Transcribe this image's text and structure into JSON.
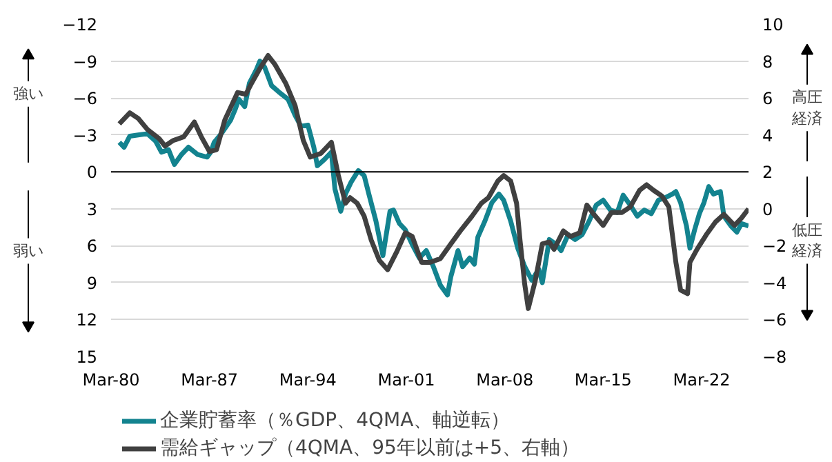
{
  "chart_data": {
    "type": "line",
    "xlim": [
      "1980-03",
      "2025-07"
    ],
    "xticks": [
      {
        "value": "1980-03",
        "label": "Mar-80"
      },
      {
        "value": "1987-03",
        "label": "Mar-87"
      },
      {
        "value": "1994-03",
        "label": "Mar-94"
      },
      {
        "value": "2001-03",
        "label": "Mar-01"
      },
      {
        "value": "2008-03",
        "label": "Mar-08"
      },
      {
        "value": "2015-03",
        "label": "Mar-15"
      },
      {
        "value": "2022-03",
        "label": "Mar-22"
      }
    ],
    "ylim": [
      15,
      -12
    ],
    "yticks": [
      -12,
      -9,
      -6,
      -3,
      0,
      3,
      6,
      9,
      12,
      15
    ],
    "y2lim": [
      -8,
      10
    ],
    "y2ticks": [
      -8,
      -6,
      -4,
      -2,
      0,
      2,
      4,
      6,
      8,
      10
    ],
    "grid": "y",
    "legend": "bottom",
    "ref_lines": [
      {
        "axis": "y",
        "value": 0,
        "color": "#000000"
      }
    ],
    "annotations": [
      "強い",
      "弱い",
      "高圧経済",
      "低圧経済"
    ],
    "series": [
      {
        "name": "企業貯蓄率（％GDP、4QMA、軸逆転）",
        "color": "#13838f",
        "x": [
          "1980-10",
          "1981-02",
          "1981-07",
          "1982-02",
          "1982-10",
          "1983-05",
          "1983-10",
          "1984-04",
          "1984-09",
          "1985-03",
          "1985-09",
          "1986-05",
          "1987-01",
          "1987-04",
          "1987-07",
          "1988-01",
          "1988-09",
          "1989-01",
          "1989-04",
          "1989-09",
          "1990-01",
          "1990-07",
          "1990-10",
          "1991-02",
          "1991-08",
          "1992-02",
          "1992-10",
          "1993-04",
          "1993-09",
          "1994-03",
          "1994-08",
          "1994-11",
          "1995-05",
          "1995-11",
          "1996-02",
          "1996-07",
          "1996-11",
          "1997-04",
          "1997-10",
          "1998-03",
          "1998-07",
          "1999-01",
          "1999-07",
          "2000-01",
          "2000-04",
          "2000-09",
          "2001-02",
          "2001-08",
          "2002-02",
          "2002-08",
          "2003-02",
          "2003-08",
          "2004-02",
          "2004-05",
          "2004-11",
          "2005-03",
          "2005-09",
          "2006-01",
          "2006-04",
          "2006-10",
          "2007-04",
          "2007-10",
          "2008-02",
          "2008-08",
          "2009-02",
          "2009-08",
          "2010-02",
          "2010-08",
          "2010-11",
          "2011-05",
          "2011-11",
          "2012-03",
          "2012-09",
          "2013-03",
          "2013-09",
          "2014-03",
          "2014-09",
          "2015-03",
          "2015-09",
          "2016-03",
          "2016-08",
          "2017-02",
          "2017-08",
          "2018-02",
          "2018-08",
          "2019-02",
          "2019-08",
          "2020-02",
          "2020-05",
          "2020-09",
          "2021-02",
          "2021-05",
          "2021-09",
          "2022-01",
          "2022-05",
          "2022-09",
          "2023-01",
          "2023-07",
          "2023-10",
          "2024-04",
          "2024-09",
          "2025-01",
          "2025-07"
        ],
        "values": [
          -2.4,
          -2.0,
          -2.9,
          -3.0,
          -3.1,
          -2.5,
          -1.6,
          -1.8,
          -0.6,
          -1.4,
          -2.0,
          -1.4,
          -1.2,
          -1.6,
          -2.4,
          -3.1,
          -4.2,
          -5.1,
          -5.9,
          -5.3,
          -7.2,
          -8.3,
          -9.0,
          -8.5,
          -7.0,
          -6.5,
          -5.9,
          -4.6,
          -3.7,
          -3.8,
          -2.0,
          -0.5,
          -1.0,
          -1.6,
          1.4,
          3.2,
          1.8,
          0.8,
          -0.1,
          0.3,
          1.8,
          4.0,
          6.8,
          3.2,
          3.1,
          4.2,
          4.7,
          5.9,
          7.0,
          6.4,
          7.7,
          9.2,
          10.0,
          8.5,
          6.4,
          7.7,
          7.0,
          7.5,
          5.3,
          4.0,
          2.5,
          1.8,
          2.3,
          4.0,
          6.2,
          7.7,
          8.8,
          7.9,
          9.0,
          5.5,
          5.9,
          6.4,
          5.1,
          5.5,
          5.1,
          4.0,
          2.7,
          2.3,
          3.1,
          3.3,
          1.9,
          2.7,
          3.6,
          3.1,
          3.4,
          2.3,
          2.1,
          1.8,
          1.6,
          2.5,
          4.4,
          6.2,
          4.7,
          3.4,
          2.5,
          1.2,
          1.8,
          1.6,
          3.6,
          4.4,
          4.9,
          4.2,
          4.4
        ]
      },
      {
        "name": "需給ギャップ（4QMA、95年以前は+5、右軸）",
        "color": "#404040",
        "axis": "y2",
        "x": [
          "1980-10",
          "1981-07",
          "1982-02",
          "1982-10",
          "1983-08",
          "1984-01",
          "1984-08",
          "1985-05",
          "1986-02",
          "1986-08",
          "1987-03",
          "1987-09",
          "1988-04",
          "1989-03",
          "1989-10",
          "1990-02",
          "1990-10",
          "1991-05",
          "1991-11",
          "1992-08",
          "1993-04",
          "1993-11",
          "1994-05",
          "1995-02",
          "1995-11",
          "1996-05",
          "1996-11",
          "1997-03",
          "1997-09",
          "1998-03",
          "1998-09",
          "1999-04",
          "1999-11",
          "2000-07",
          "2001-02",
          "2001-08",
          "2002-04",
          "2002-11",
          "2003-08",
          "2004-05",
          "2005-01",
          "2005-11",
          "2006-07",
          "2007-01",
          "2007-09",
          "2008-02",
          "2008-08",
          "2009-01",
          "2009-04",
          "2009-08",
          "2009-11",
          "2010-05",
          "2010-11",
          "2011-05",
          "2011-09",
          "2012-05",
          "2012-11",
          "2013-07",
          "2014-01",
          "2014-07",
          "2015-03",
          "2015-10",
          "2016-07",
          "2017-02",
          "2017-10",
          "2018-04",
          "2018-10",
          "2019-05",
          "2019-11",
          "2020-05",
          "2020-09",
          "2021-03",
          "2021-05",
          "2021-11",
          "2022-07",
          "2023-03",
          "2023-10",
          "2024-07",
          "2025-01",
          "2025-07"
        ],
        "values": [
          4.6,
          5.2,
          4.9,
          4.3,
          3.8,
          3.4,
          3.7,
          3.9,
          4.7,
          3.9,
          3.1,
          3.2,
          4.8,
          6.3,
          6.2,
          6.7,
          7.6,
          8.3,
          7.8,
          6.8,
          5.6,
          3.7,
          2.8,
          3.0,
          3.6,
          1.8,
          0.3,
          0.6,
          0.3,
          -0.4,
          -1.7,
          -2.8,
          -3.3,
          -2.3,
          -1.3,
          -1.5,
          -2.9,
          -2.9,
          -2.7,
          -1.9,
          -1.2,
          -0.4,
          0.3,
          0.6,
          1.5,
          1.8,
          1.5,
          0.3,
          -1.7,
          -4.1,
          -5.4,
          -3.9,
          -1.9,
          -1.8,
          -2.2,
          -1.2,
          -1.5,
          -1.3,
          0.2,
          -0.3,
          -0.9,
          -0.2,
          -0.2,
          0.1,
          1.0,
          1.3,
          1.0,
          0.7,
          0.1,
          -2.9,
          -4.4,
          -4.6,
          -2.9,
          -2.2,
          -1.4,
          -0.7,
          -0.3,
          -0.9,
          -0.5,
          0.0
        ]
      }
    ]
  }
}
